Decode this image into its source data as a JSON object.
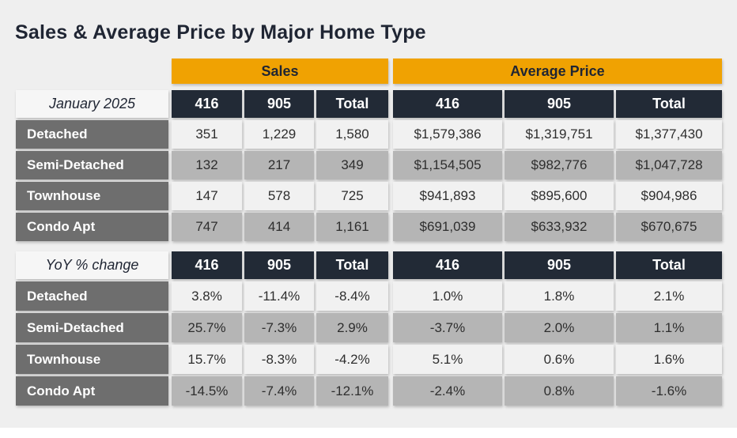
{
  "title": "Sales & Average Price by Major Home Type",
  "colors": {
    "page_background": "#efefef",
    "accent_gold": "#f0a202",
    "header_dark_navy": "#222a36",
    "row_label_gray": "#6e6e6e",
    "stripe_light": "#f1f1f1",
    "stripe_dark": "#b5b5b5",
    "title_text": "#1f2533"
  },
  "chart_data": {
    "type": "table",
    "title": "Sales & Average Price by Major Home Type",
    "groups": [
      {
        "label": "Sales",
        "columns": [
          "416",
          "905",
          "Total"
        ]
      },
      {
        "label": "Average Price",
        "columns": [
          "416",
          "905",
          "Total"
        ]
      }
    ],
    "sections": [
      {
        "corner_label": "January 2025",
        "rows": [
          {
            "label": "Detached",
            "values": [
              "351",
              "1,229",
              "1,580",
              "$1,579,386",
              "$1,319,751",
              "$1,377,430"
            ]
          },
          {
            "label": "Semi-Detached",
            "values": [
              "132",
              "217",
              "349",
              "$1,154,505",
              "$982,776",
              "$1,047,728"
            ]
          },
          {
            "label": "Townhouse",
            "values": [
              "147",
              "578",
              "725",
              "$941,893",
              "$895,600",
              "$904,986"
            ]
          },
          {
            "label": "Condo Apt",
            "values": [
              "747",
              "414",
              "1,161",
              "$691,039",
              "$633,932",
              "$670,675"
            ]
          }
        ]
      },
      {
        "corner_label": "YoY % change",
        "rows": [
          {
            "label": "Detached",
            "values": [
              "3.8%",
              "-11.4%",
              "-8.4%",
              "1.0%",
              "1.8%",
              "2.1%"
            ]
          },
          {
            "label": "Semi-Detached",
            "values": [
              "25.7%",
              "-7.3%",
              "2.9%",
              "-3.7%",
              "2.0%",
              "1.1%"
            ]
          },
          {
            "label": "Townhouse",
            "values": [
              "15.7%",
              "-8.3%",
              "-4.2%",
              "5.1%",
              "0.6%",
              "1.6%"
            ]
          },
          {
            "label": "Condo Apt",
            "values": [
              "-14.5%",
              "-7.4%",
              "-12.1%",
              "-2.4%",
              "0.8%",
              "-1.6%"
            ]
          }
        ]
      }
    ]
  }
}
